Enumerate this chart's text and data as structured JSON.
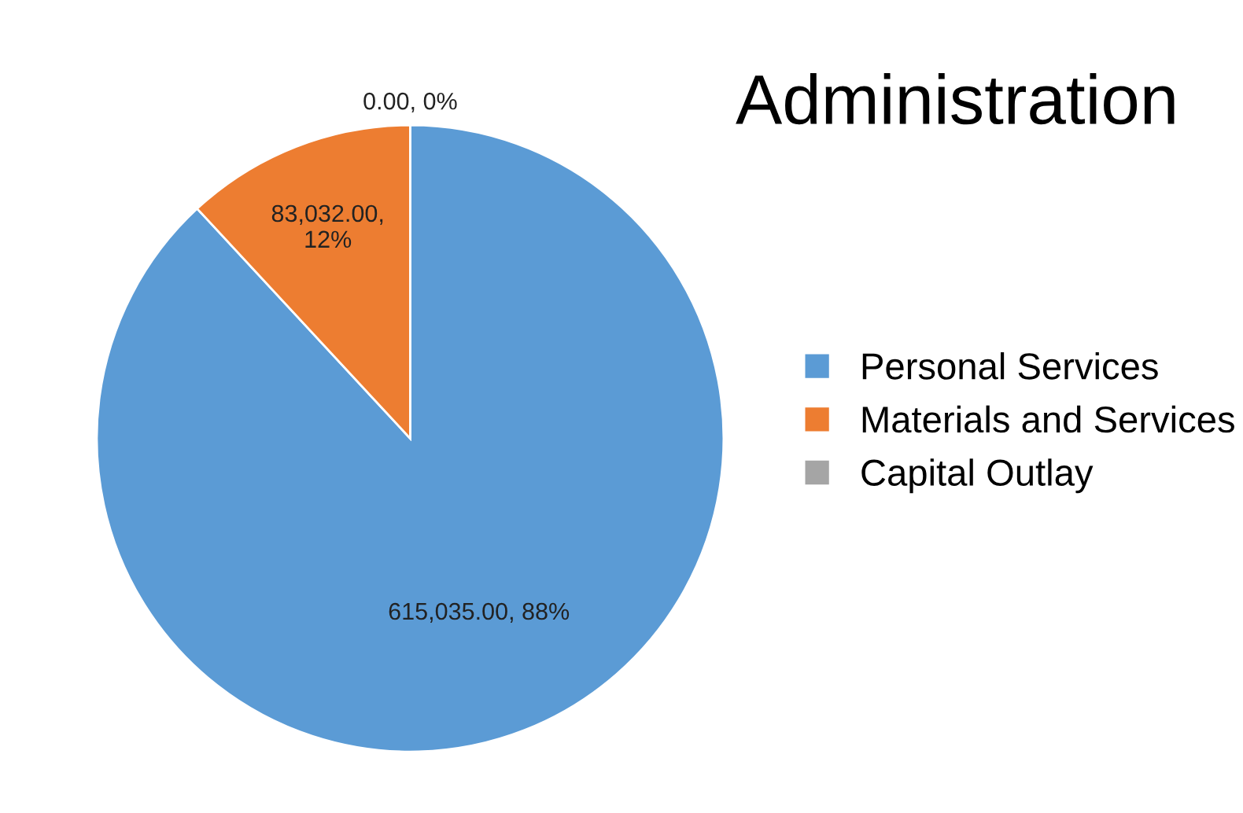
{
  "chart_data": {
    "type": "pie",
    "title": "Administration",
    "categories": [
      "Personal Services",
      "Materials and Services",
      "Capital Outlay"
    ],
    "values": [
      615035.0,
      83032.0,
      0.0
    ],
    "colors": [
      "#5b9bd5",
      "#ed7d31",
      "#a5a5a5"
    ],
    "value_labels": [
      "615,035.00, 88%",
      "83,032.00,\n12%",
      "0.00, 0%"
    ],
    "legend": "right"
  }
}
